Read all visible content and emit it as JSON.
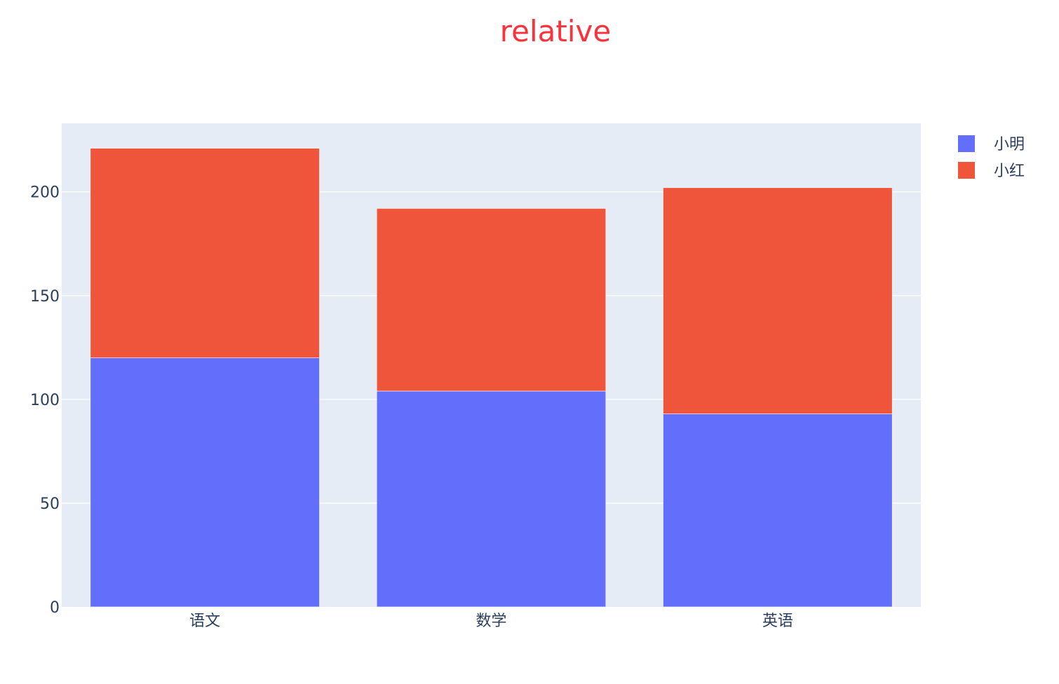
{
  "chart_data": {
    "type": "bar",
    "barmode": "relative",
    "title": "relative",
    "xlabel": "",
    "ylabel": "",
    "categories": [
      "语文",
      "数学",
      "英语"
    ],
    "series": [
      {
        "name": "小明",
        "values": [
          120,
          104,
          93
        ]
      },
      {
        "name": "小红",
        "values": [
          101,
          88,
          109
        ]
      }
    ],
    "ylim": [
      0,
      233
    ],
    "yticks": [
      0,
      50,
      100,
      150,
      200
    ],
    "grid": true,
    "legend_position": "top-right",
    "colors": {
      "title": "#f8333c",
      "plot_background": "#e5ecf6",
      "grid": "#ffffff",
      "tick_text": "#2a3f5f",
      "series": [
        "#636efa",
        "#ef553b"
      ]
    }
  }
}
